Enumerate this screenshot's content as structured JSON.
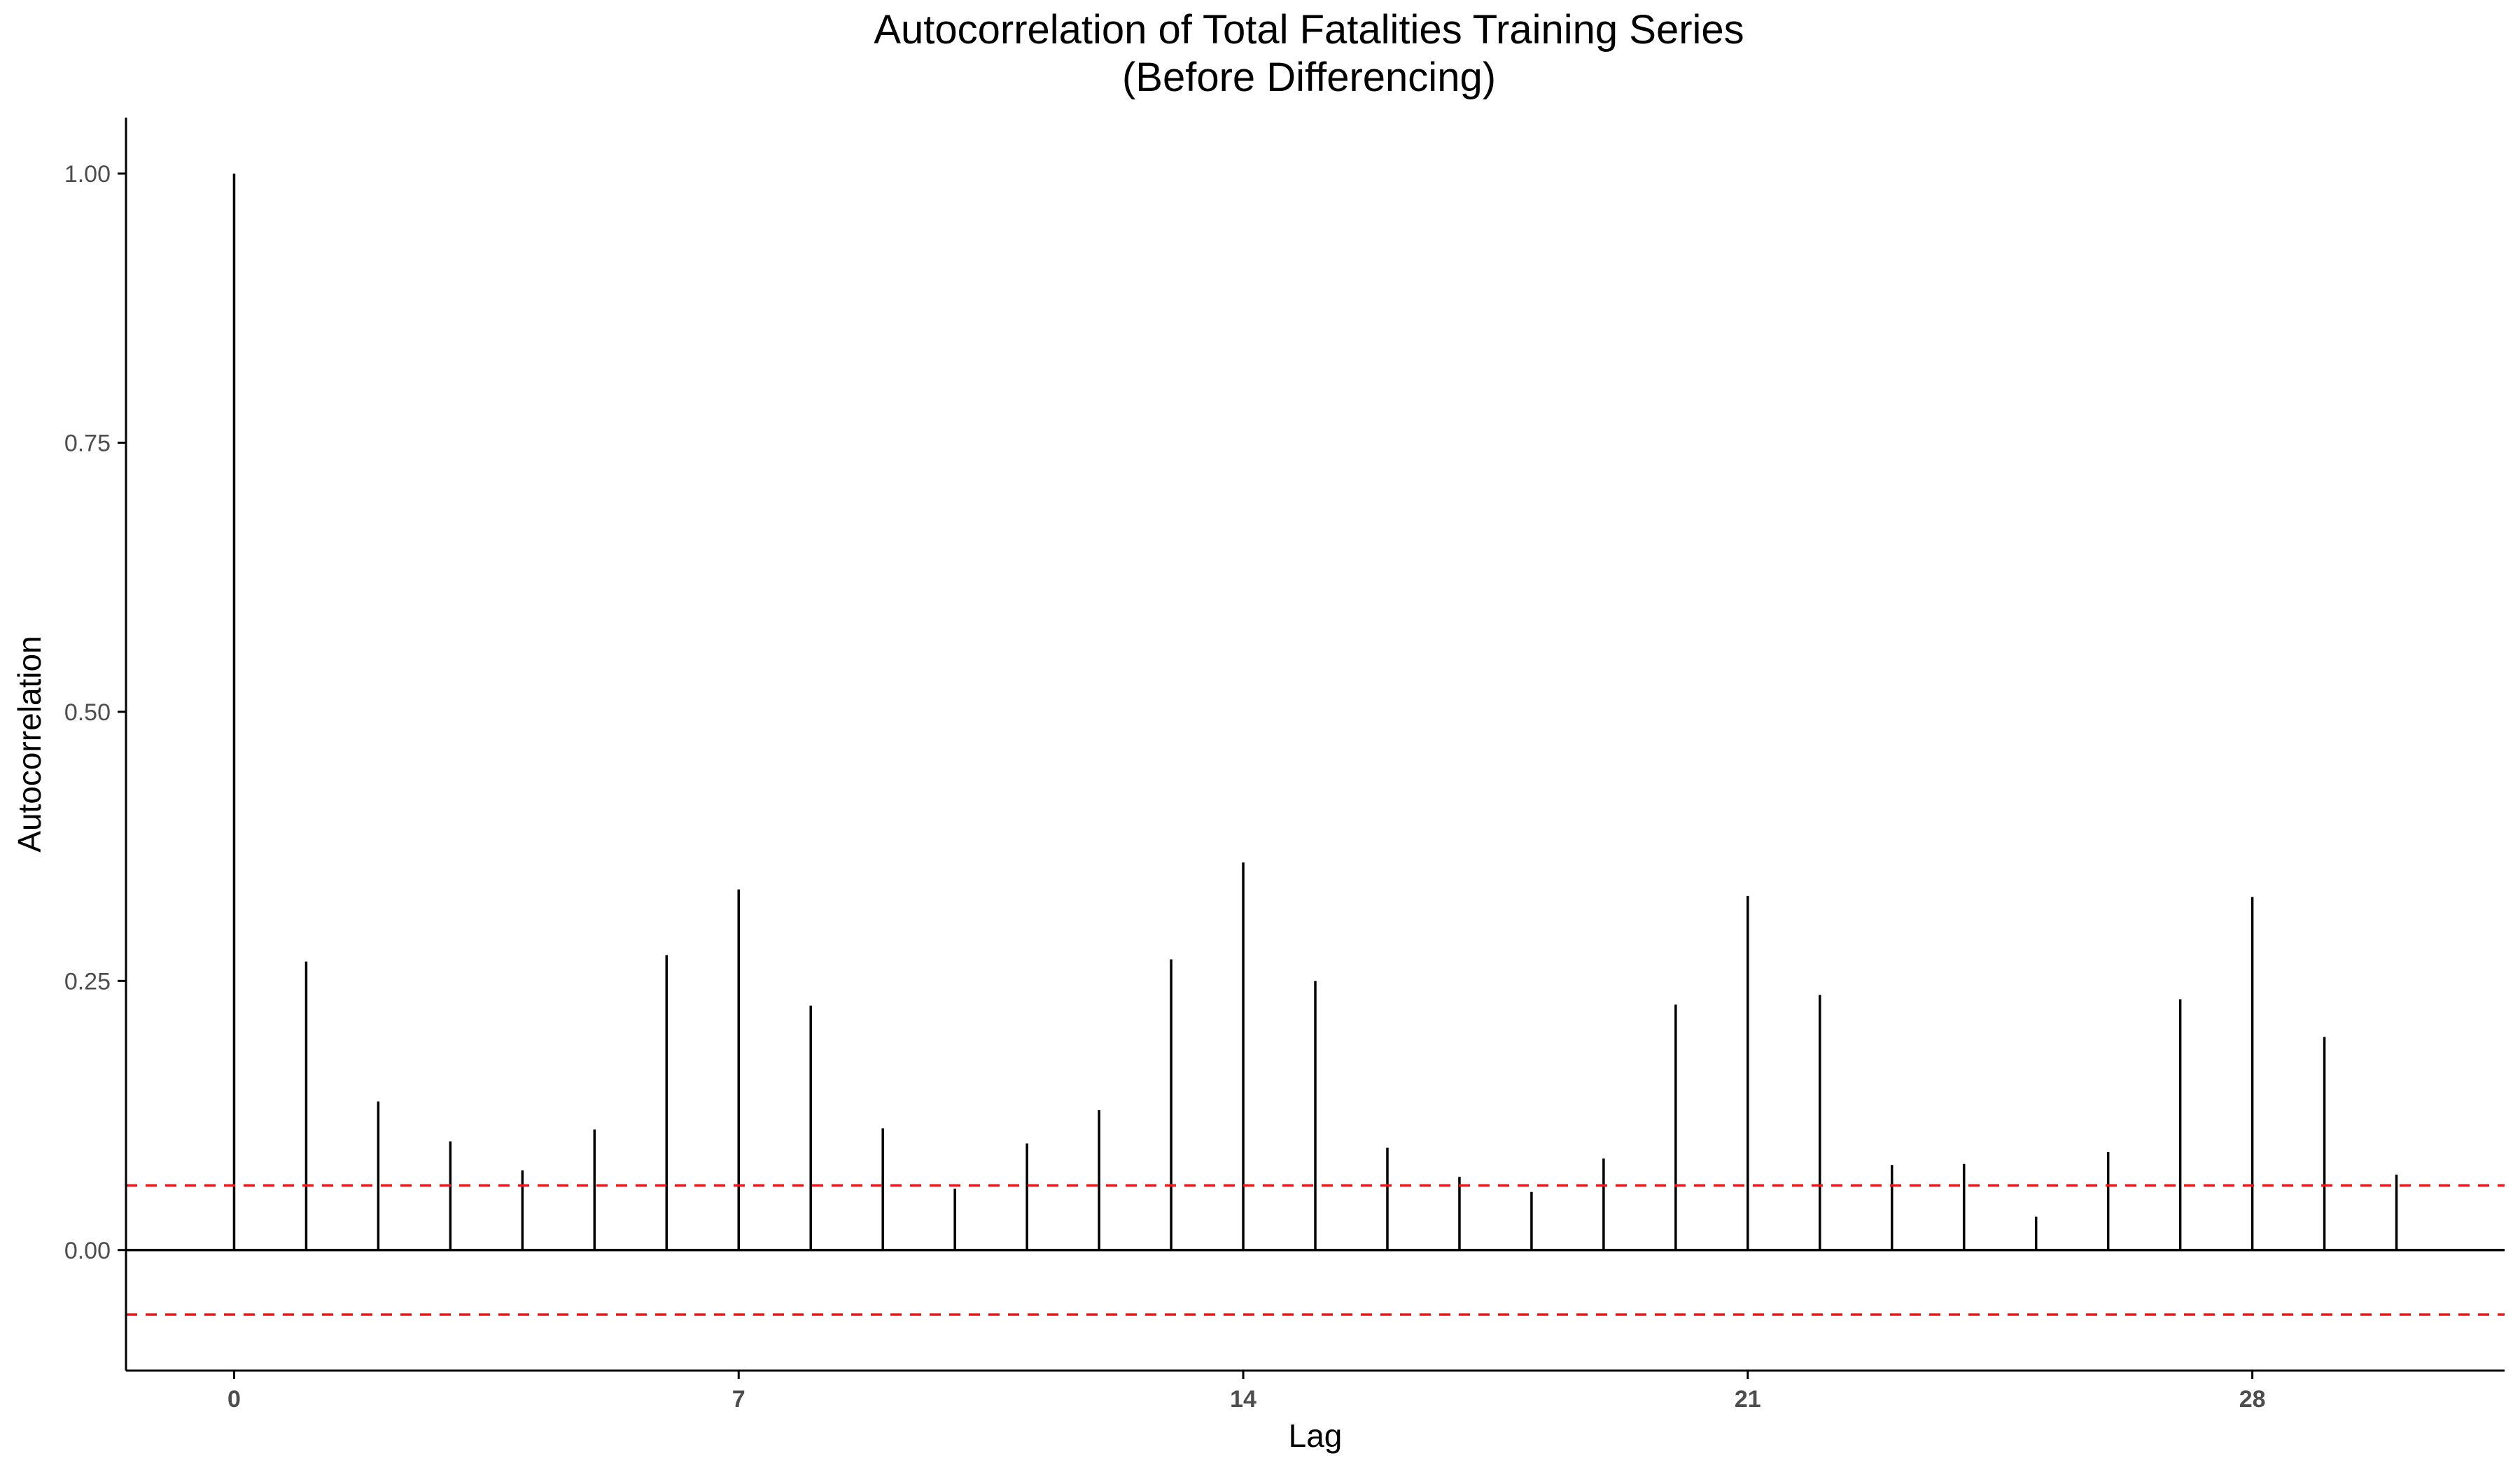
{
  "chart_data": {
    "type": "bar",
    "subtype": "acf",
    "title_line1": "Autocorrelation of Total Fatalities Training Series",
    "title_line2": "(Before Differencing)",
    "xlabel": "Lag",
    "ylabel": "Autocorrelation",
    "x": [
      0,
      1,
      2,
      3,
      4,
      5,
      6,
      7,
      8,
      9,
      10,
      11,
      12,
      13,
      14,
      15,
      16,
      17,
      18,
      19,
      20,
      21,
      22,
      23,
      24,
      25,
      26,
      27,
      28,
      29,
      30
    ],
    "values": [
      1.0,
      0.268,
      0.138,
      0.101,
      0.074,
      0.112,
      0.274,
      0.335,
      0.227,
      0.113,
      0.057,
      0.099,
      0.13,
      0.27,
      0.36,
      0.25,
      0.095,
      0.068,
      0.054,
      0.085,
      0.228,
      0.329,
      0.237,
      0.079,
      0.08,
      0.031,
      0.091,
      0.233,
      0.328,
      0.198,
      0.07
    ],
    "confidence_bound": 0.06,
    "xlim": [
      -1.5,
      31.5
    ],
    "ylim": [
      -0.112,
      1.052
    ],
    "yticks": [
      0.0,
      0.25,
      0.5,
      0.75,
      1.0
    ],
    "ytick_labels": [
      "0.00",
      "0.25",
      "0.50",
      "0.75",
      "1.00"
    ],
    "xticks": [
      0,
      7,
      14,
      21,
      28
    ],
    "xtick_labels": [
      "0",
      "7",
      "14",
      "21",
      "28"
    ],
    "grid": false,
    "legend": "none",
    "colors": {
      "bars": "#000000",
      "confidence_lines": "#e41a1c",
      "zero_line": "#000000",
      "axes": "#000000",
      "tick_labels": "#4d4d4d"
    }
  }
}
